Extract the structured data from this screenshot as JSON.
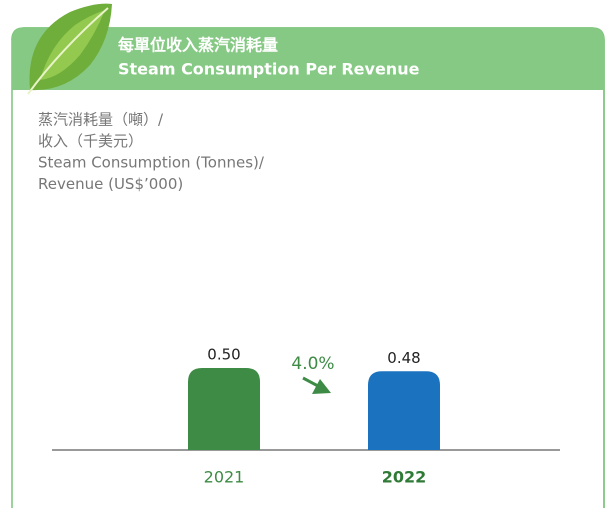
{
  "chart_data": {
    "type": "bar",
    "title": "每單位收入蒸汽消耗量",
    "subtitle": "Steam Consumption Per Revenue",
    "y_label": [
      "蒸汽消耗量（噸）/",
      "收入（千美元）",
      "Steam Consumption (Tonnes)/",
      "Revenue (US$’000)"
    ],
    "categories": [
      "2021",
      "2022"
    ],
    "values": [
      0.5,
      0.48
    ],
    "value_labels": [
      "0.50",
      "0.48"
    ],
    "colors": [
      "#3d8b45",
      "#1b72bf"
    ],
    "annotation": "4.0%"
  }
}
